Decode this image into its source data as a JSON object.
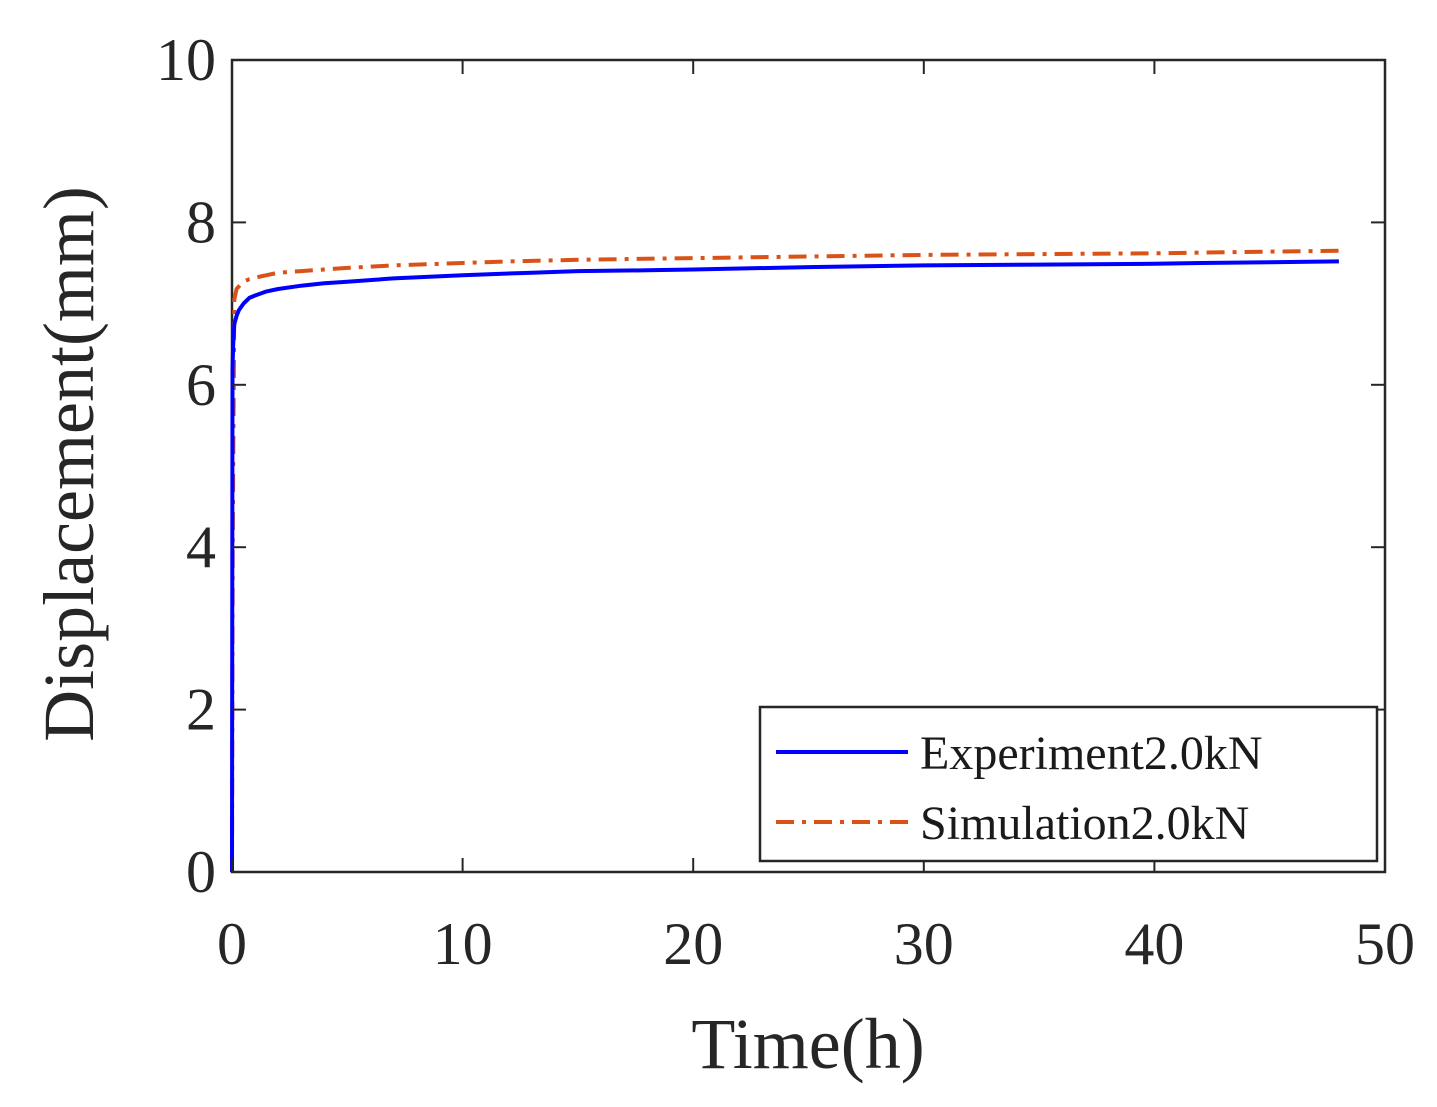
{
  "chart_data": {
    "type": "line",
    "title": "",
    "xlabel": "Time(h)",
    "ylabel": "Displacement(mm)",
    "xlim": [
      0,
      50
    ],
    "ylim": [
      0,
      10
    ],
    "xticks": [
      0,
      10,
      20,
      30,
      40,
      50
    ],
    "yticks": [
      0,
      2,
      4,
      6,
      8,
      10
    ],
    "x_tick_labels": [
      "0",
      "10",
      "20",
      "30",
      "40",
      "50"
    ],
    "y_tick_labels": [
      "0",
      "2",
      "4",
      "6",
      "8",
      "10"
    ],
    "grid": false,
    "legend_position": "bottom-right",
    "series": [
      {
        "name": "Experiment2.0kN",
        "color": "#0000ff",
        "style": "solid",
        "x": [
          0,
          0.02,
          0.05,
          0.1,
          0.2,
          0.3,
          0.5,
          0.75,
          1,
          1.5,
          2,
          3,
          4,
          5,
          7,
          10,
          13,
          15,
          18,
          20,
          25,
          30,
          35,
          40,
          42,
          45,
          48
        ],
        "y": [
          0,
          6.2,
          6.5,
          6.75,
          6.85,
          6.92,
          7.0,
          7.07,
          7.1,
          7.15,
          7.18,
          7.22,
          7.25,
          7.27,
          7.31,
          7.35,
          7.38,
          7.4,
          7.41,
          7.42,
          7.45,
          7.47,
          7.48,
          7.49,
          7.5,
          7.51,
          7.52
        ]
      },
      {
        "name": "Simulation2.0kN",
        "color": "#d95319",
        "style": "dash-dot",
        "x": [
          0,
          0.03,
          0.1,
          0.2,
          0.35,
          0.5,
          0.75,
          1,
          1.5,
          2,
          3,
          4,
          5,
          7,
          10,
          12,
          15,
          20,
          25,
          30,
          35,
          40,
          45,
          48
        ],
        "y": [
          0,
          4.0,
          7.05,
          7.18,
          7.23,
          7.27,
          7.3,
          7.32,
          7.35,
          7.38,
          7.4,
          7.42,
          7.44,
          7.47,
          7.5,
          7.52,
          7.54,
          7.56,
          7.58,
          7.6,
          7.61,
          7.62,
          7.64,
          7.65
        ]
      }
    ]
  }
}
